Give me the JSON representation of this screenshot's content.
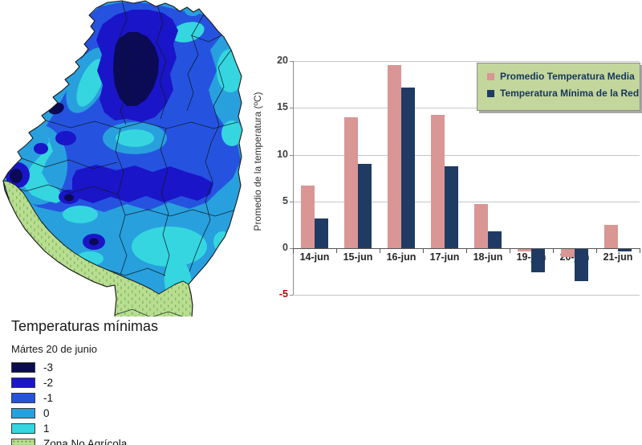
{
  "map": {
    "legend": {
      "title": "Temperaturas mínimas",
      "subtitle": "Mártes 20 de junio",
      "items": [
        {
          "label": "-3",
          "color": "#0A0A55"
        },
        {
          "label": "-2",
          "color": "#1B15C9"
        },
        {
          "label": "-1",
          "color": "#2553E0"
        },
        {
          "label": "0",
          "color": "#28A0DD"
        },
        {
          "label": "1",
          "color": "#35D6E0"
        },
        {
          "label": "Zona No Agrícola",
          "color": "#B9DD92",
          "patterned": true
        }
      ],
      "pattern_dash_color": "#7DBE52",
      "border_color": "#1a1a1a"
    }
  },
  "chart_data": {
    "type": "bar",
    "categories": [
      "14-jun",
      "15-jun",
      "16-jun",
      "17-jun",
      "18-jun",
      "19-jun",
      "20-jun",
      "21-jun"
    ],
    "series": [
      {
        "name": "Promedio Temperatura Media",
        "color": "#D99694",
        "values": [
          6.7,
          14.0,
          19.6,
          14.3,
          4.7,
          -0.3,
          -0.9,
          2.5
        ]
      },
      {
        "name": "Temperatura Mínima de la Red",
        "color": "#1F3B63",
        "values": [
          3.2,
          9.0,
          17.2,
          8.8,
          1.8,
          -2.5,
          -3.4,
          -0.3
        ]
      }
    ],
    "title": "",
    "xlabel": "",
    "ylabel": "Promedio de la temperatura (ºC)",
    "ylim": [
      -5,
      20
    ],
    "yticks": [
      20,
      15,
      10,
      5,
      0,
      -5
    ],
    "ytick_negative_color": "#C00000",
    "grid": true,
    "legend_position": "top-right",
    "legend_bg": "#C3D69B"
  }
}
